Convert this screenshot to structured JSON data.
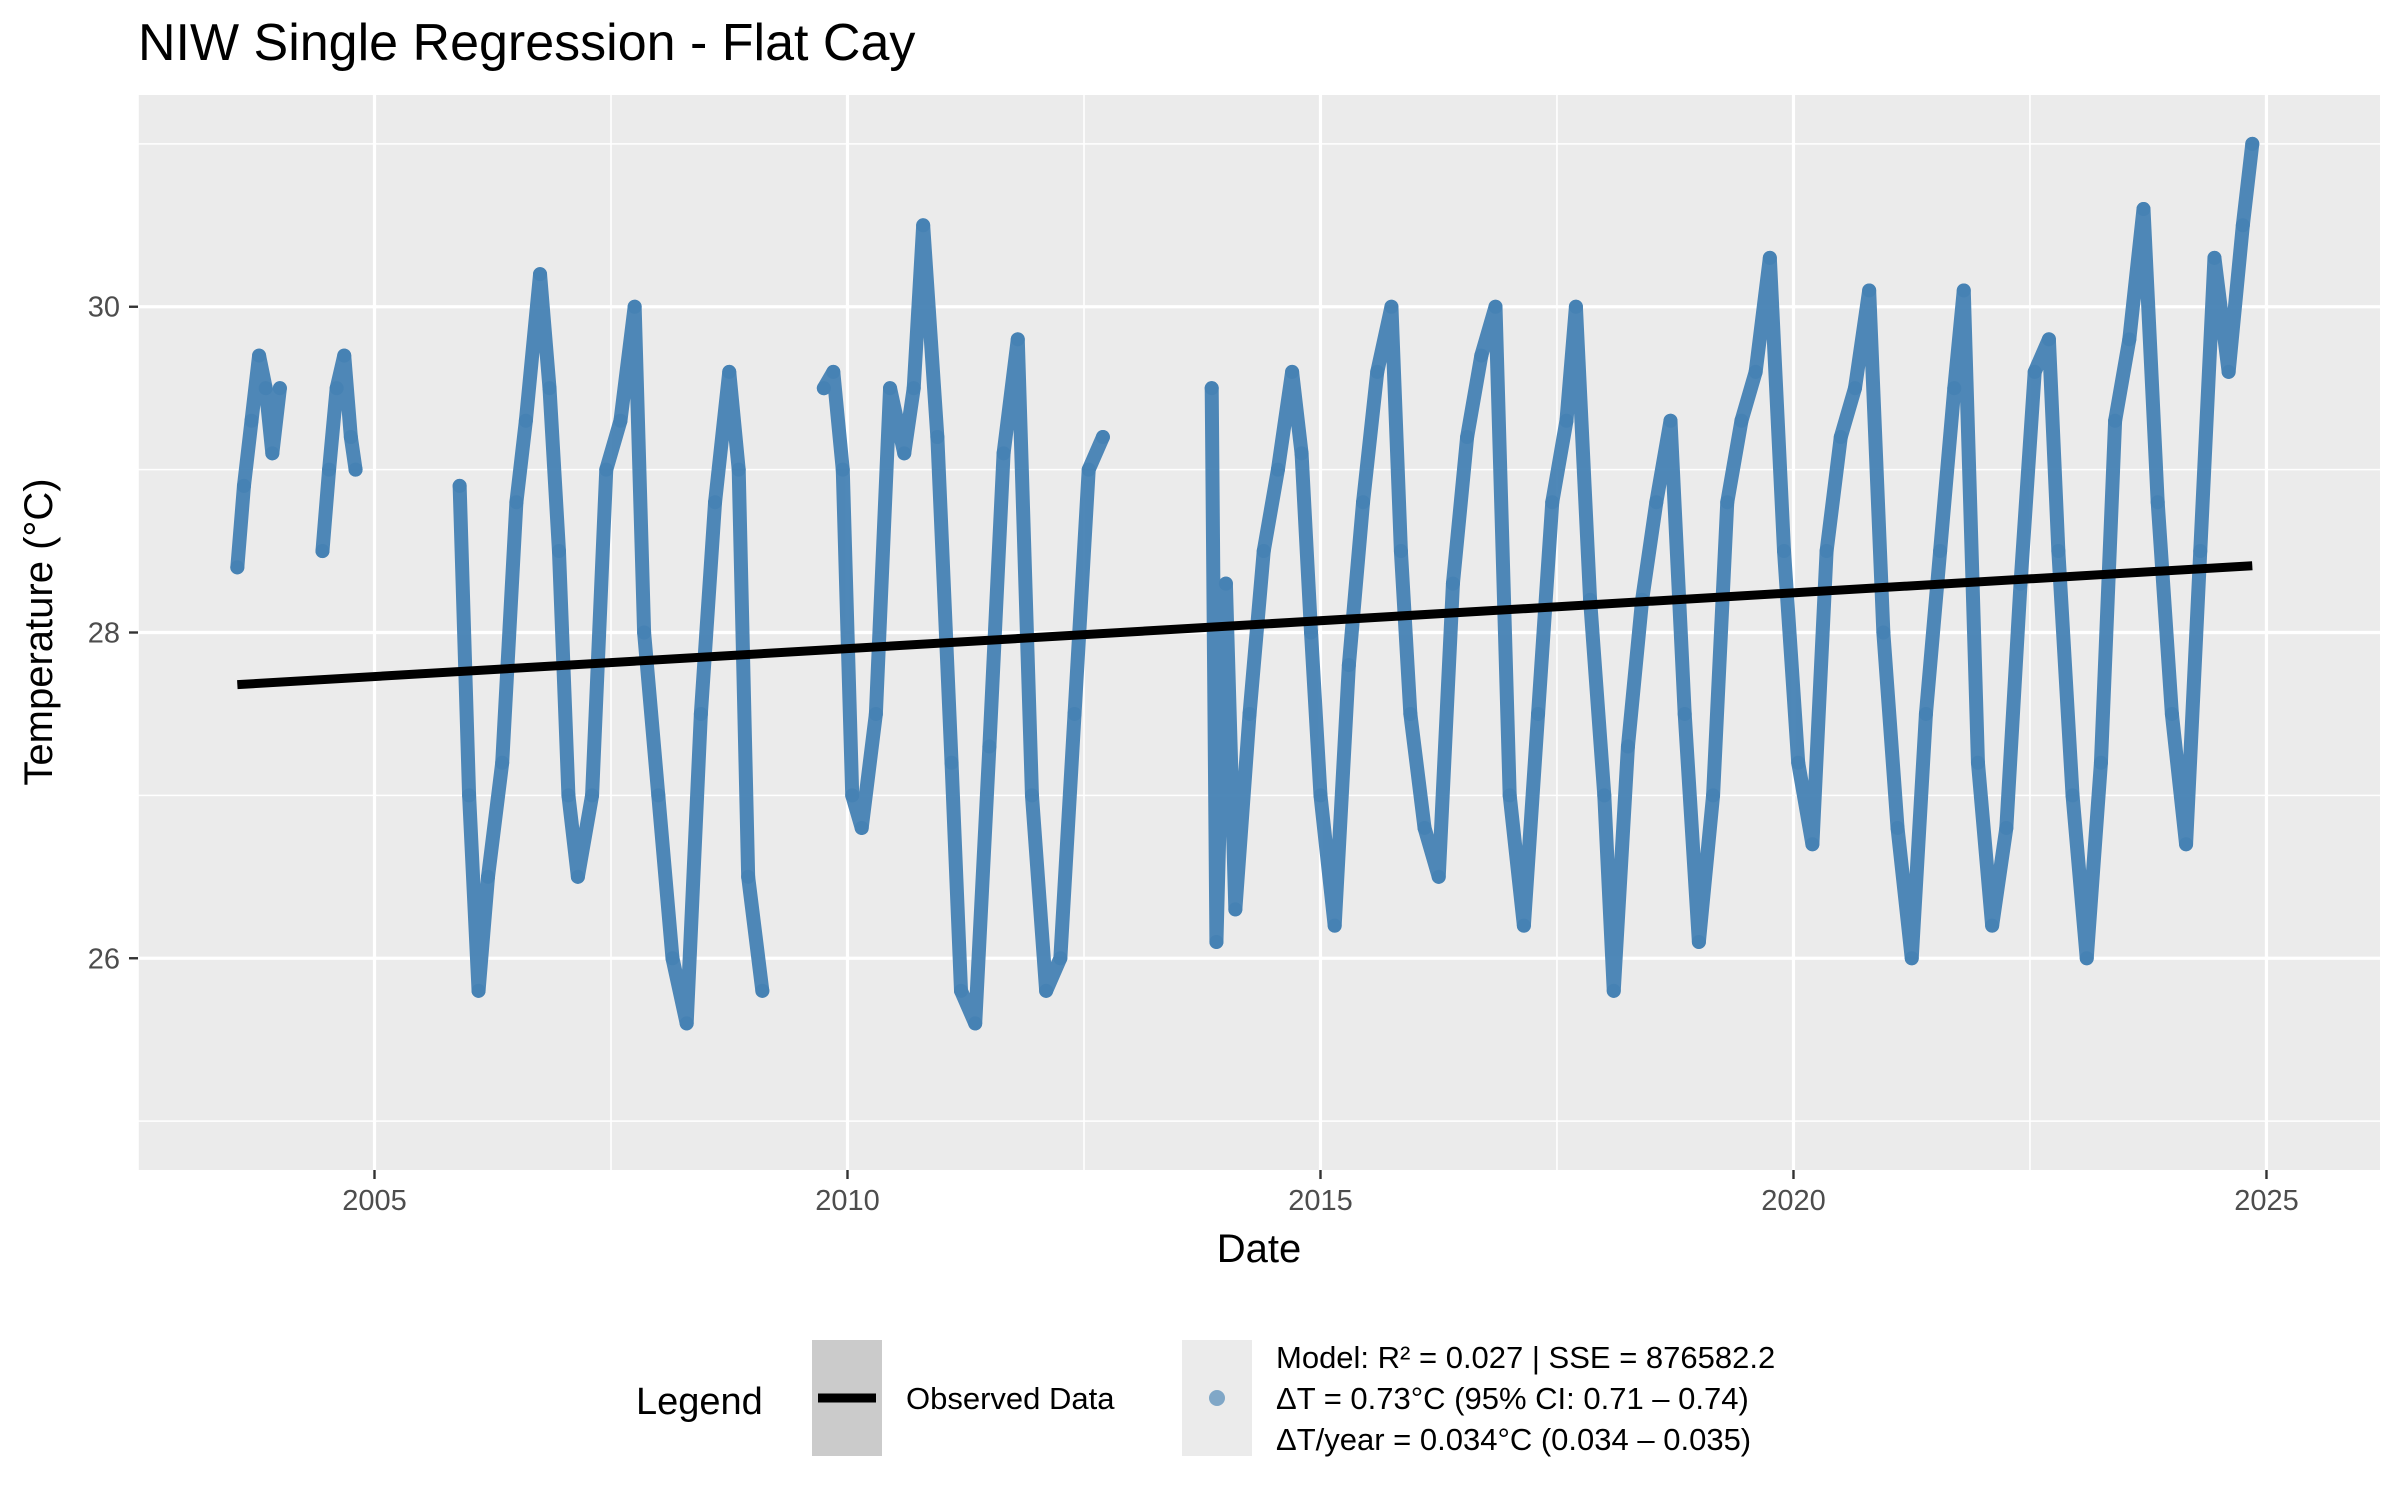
{
  "chart_data": {
    "type": "line",
    "title": "NIW Single Regression - Flat Cay",
    "xlabel": "Date",
    "ylabel": "Temperature (°C)",
    "xlim": [
      2002.5,
      2026.2
    ],
    "ylim": [
      24.7,
      31.3
    ],
    "x_ticks": [
      "2005",
      "2010",
      "2015",
      "2020",
      "2025"
    ],
    "y_ticks": [
      "26",
      "28",
      "30"
    ],
    "grid": true,
    "legend_position": "bottom",
    "colors": {
      "observed": "#4682b4",
      "trend": "#000000",
      "panel": "#ebebeb",
      "grid": "#ffffff"
    },
    "series": [
      {
        "name": "Observed Data",
        "style": "points",
        "segments": [
          {
            "x": [
              2003.55,
              2003.62,
              2003.7,
              2003.78,
              2003.85,
              2003.92,
              2004.0
            ],
            "y": [
              28.4,
              28.9,
              29.3,
              29.7,
              29.5,
              29.1,
              29.5
            ]
          },
          {
            "x": [
              2004.45,
              2004.52,
              2004.6,
              2004.68,
              2004.75,
              2004.8
            ],
            "y": [
              28.5,
              29.0,
              29.5,
              29.7,
              29.2,
              29.0
            ]
          },
          {
            "x": [
              2005.9,
              2006.0,
              2006.1,
              2006.2,
              2006.35,
              2006.5,
              2006.6,
              2006.75,
              2006.85,
              2006.95,
              2007.05,
              2007.15,
              2007.3,
              2007.45,
              2007.6,
              2007.75,
              2007.85,
              2008.0,
              2008.15,
              2008.3,
              2008.45,
              2008.6,
              2008.75,
              2008.85,
              2008.95,
              2009.1
            ],
            "y": [
              28.9,
              27.0,
              25.8,
              26.5,
              27.2,
              28.8,
              29.3,
              30.2,
              29.5,
              28.5,
              27.0,
              26.5,
              27.0,
              29.0,
              29.3,
              30.0,
              28.0,
              27.0,
              26.0,
              25.6,
              27.5,
              28.8,
              29.6,
              29.0,
              26.5,
              25.8
            ]
          },
          {
            "x": [
              2009.75,
              2009.85,
              2009.95,
              2010.05,
              2010.15,
              2010.3,
              2010.45,
              2010.6,
              2010.7,
              2010.8,
              2010.95,
              2011.1,
              2011.2,
              2011.35,
              2011.5,
              2011.65,
              2011.8,
              2011.95,
              2012.1,
              2012.25,
              2012.4,
              2012.55,
              2012.7
            ],
            "y": [
              29.5,
              29.6,
              29.0,
              27.0,
              26.8,
              27.5,
              29.5,
              29.1,
              29.5,
              30.5,
              29.2,
              27.2,
              25.8,
              25.6,
              27.3,
              29.1,
              29.8,
              27.0,
              25.8,
              26.0,
              27.5,
              29.0,
              29.2
            ]
          },
          {
            "x": [
              2013.85,
              2013.9,
              2014.0,
              2014.1,
              2014.25,
              2014.4,
              2014.55,
              2014.7,
              2014.8,
              2014.9,
              2015.0,
              2015.15,
              2015.3,
              2015.45,
              2015.6,
              2015.75,
              2015.85,
              2015.95,
              2016.1,
              2016.25,
              2016.4,
              2016.55,
              2016.7,
              2016.85,
              2017.0,
              2017.15,
              2017.3,
              2017.45,
              2017.6,
              2017.7,
              2017.85,
              2018.0,
              2018.1,
              2018.25,
              2018.4,
              2018.55,
              2018.7,
              2018.85,
              2019.0,
              2019.15,
              2019.3,
              2019.45,
              2019.6,
              2019.75,
              2019.9,
              2020.05,
              2020.2,
              2020.35,
              2020.5,
              2020.65,
              2020.8,
              2020.95,
              2021.1,
              2021.25,
              2021.4,
              2021.55,
              2021.7,
              2021.8,
              2021.95,
              2022.1,
              2022.25,
              2022.4,
              2022.55,
              2022.7,
              2022.8,
              2022.95,
              2023.1,
              2023.25,
              2023.4,
              2023.55,
              2023.7,
              2023.85,
              2024.0,
              2024.15,
              2024.3,
              2024.45,
              2024.6,
              2024.75,
              2024.85
            ],
            "y": [
              29.5,
              26.1,
              28.3,
              26.3,
              27.5,
              28.5,
              29.0,
              29.6,
              29.1,
              28.0,
              27.0,
              26.2,
              27.8,
              28.8,
              29.6,
              30.0,
              28.5,
              27.5,
              26.8,
              26.5,
              28.3,
              29.2,
              29.7,
              30.0,
              27.0,
              26.2,
              27.5,
              28.8,
              29.3,
              30.0,
              28.2,
              27.0,
              25.8,
              27.3,
              28.2,
              28.8,
              29.3,
              27.5,
              26.1,
              27.0,
              28.8,
              29.3,
              29.6,
              30.3,
              28.5,
              27.2,
              26.7,
              28.5,
              29.2,
              29.5,
              30.1,
              28.0,
              26.8,
              26.0,
              27.5,
              28.5,
              29.5,
              30.1,
              27.2,
              26.2,
              26.8,
              28.3,
              29.6,
              29.8,
              28.5,
              27.0,
              26.0,
              27.2,
              29.3,
              29.8,
              30.6,
              28.8,
              27.5,
              26.7,
              28.5,
              30.3,
              29.6,
              30.5,
              31.0
            ]
          }
        ]
      },
      {
        "name": "Model: R² = 0.027 | SSE = 876582.2",
        "style": "line",
        "x": [
          2003.55,
          2024.85
        ],
        "y": [
          27.68,
          28.41
        ]
      }
    ],
    "legend": {
      "title": "Legend",
      "line_label": "Observed Data",
      "point_label_lines": [
        "Model: R² = 0.027 | SSE = 876582.2",
        "ΔT = 0.73°C (95% CI: 0.71 – 0.74)",
        "ΔT/year = 0.034°C (0.034 – 0.035)"
      ]
    }
  }
}
